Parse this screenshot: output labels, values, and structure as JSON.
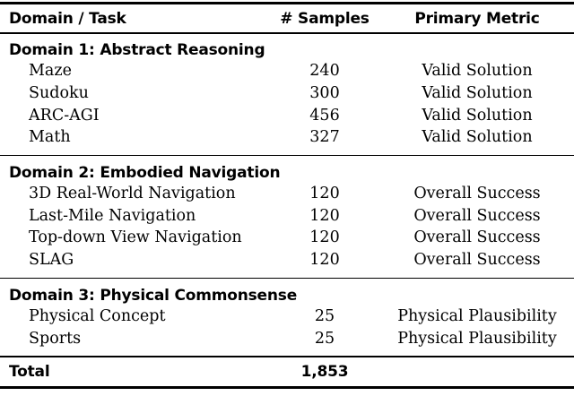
{
  "table": {
    "columns": {
      "domain_task": "Domain / Task",
      "samples": "# Samples",
      "primary_metric": "Primary Metric"
    },
    "sections": [
      {
        "heading": "Domain 1: Abstract Reasoning",
        "rows": [
          {
            "task": "Maze",
            "samples": "240",
            "metric": "Valid Solution"
          },
          {
            "task": "Sudoku",
            "samples": "300",
            "metric": "Valid Solution"
          },
          {
            "task": "ARC-AGI",
            "samples": "456",
            "metric": "Valid Solution"
          },
          {
            "task": "Math",
            "samples": "327",
            "metric": "Valid Solution"
          }
        ]
      },
      {
        "heading": "Domain 2: Embodied Navigation",
        "rows": [
          {
            "task": "3D Real-World Navigation",
            "samples": "120",
            "metric": "Overall Success"
          },
          {
            "task": "Last-Mile Navigation",
            "samples": "120",
            "metric": "Overall Success"
          },
          {
            "task": "Top-down View Navigation",
            "samples": "120",
            "metric": "Overall Success"
          },
          {
            "task": "SLAG",
            "samples": "120",
            "metric": "Overall Success"
          }
        ]
      },
      {
        "heading": "Domain 3: Physical Commonsense",
        "rows": [
          {
            "task": "Physical Concept",
            "samples": "25",
            "metric": "Physical Plausibility"
          },
          {
            "task": "Sports",
            "samples": "25",
            "metric": "Physical Plausibility"
          }
        ]
      }
    ],
    "total": {
      "label": "Total",
      "value": "1,853"
    }
  },
  "colors": {
    "text": "#000000",
    "rule": "#000000",
    "background": "#ffffff"
  }
}
